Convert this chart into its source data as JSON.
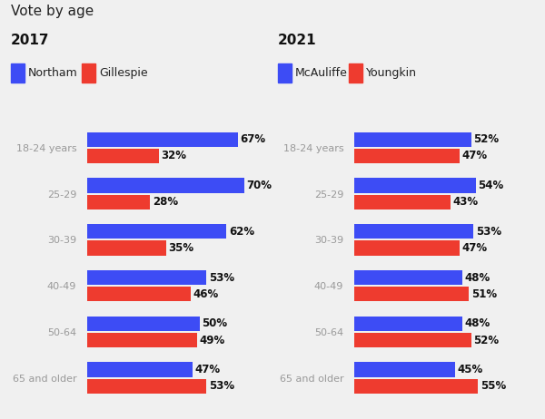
{
  "title": "Vote by age",
  "left_year": "2017",
  "right_year": "2021",
  "categories": [
    "18-24 years",
    "25-29",
    "30-39",
    "40-49",
    "50-64",
    "65 and older"
  ],
  "left_blue_label": "Northam",
  "left_red_label": "Gillespie",
  "right_blue_label": "McAuliffe",
  "right_red_label": "Youngkin",
  "left_blue": [
    67,
    70,
    62,
    53,
    50,
    47
  ],
  "left_red": [
    32,
    28,
    35,
    46,
    49,
    53
  ],
  "right_blue": [
    52,
    54,
    53,
    48,
    48,
    45
  ],
  "right_red": [
    47,
    43,
    47,
    51,
    52,
    55
  ],
  "blue_color": "#3d4cf5",
  "red_color": "#ee3b2f",
  "background_color": "#f0f0f0",
  "label_color": "#999999",
  "value_color": "#111111",
  "title_fontsize": 11,
  "year_fontsize": 11,
  "legend_fontsize": 9,
  "bar_label_fontsize": 8.5,
  "cat_fontsize": 8,
  "bar_height": 0.32,
  "max_val": 80
}
